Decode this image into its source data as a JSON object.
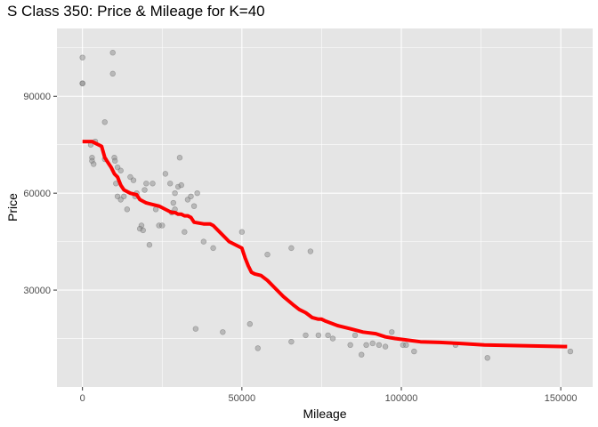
{
  "chart_data": {
    "type": "scatter",
    "title": "S Class 350: Price & Mileage for K=40",
    "xlabel": "Mileage",
    "ylabel": "Price",
    "xlim": [
      -8000,
      160000
    ],
    "ylim": [
      0,
      111000
    ],
    "x_ticks": [
      0,
      50000,
      100000,
      150000
    ],
    "x_tick_labels": [
      "0",
      "50000",
      "100000",
      "150000"
    ],
    "y_ticks": [
      30000,
      60000,
      90000
    ],
    "y_tick_labels": [
      "30000",
      "60000",
      "90000"
    ],
    "grid": true,
    "colors": {
      "panel_background": "#e5e5e5",
      "grid": "#ffffff",
      "points": "#8c8c8c",
      "fit_line": "#ff0000"
    },
    "series": [
      {
        "type": "scatter",
        "x": [
          0,
          0,
          0,
          9500,
          9500,
          7000,
          2600,
          3000,
          3000,
          3500,
          4000,
          7000,
          10000,
          10200,
          11000,
          12000,
          10500,
          13000,
          15000,
          16000,
          17000,
          18500,
          20000,
          22000,
          11000,
          12000,
          14000,
          16500,
          18000,
          19000,
          19500,
          21000,
          23000,
          24000,
          25000,
          26000,
          27500,
          28000,
          28500,
          29000,
          30000,
          31000,
          29000,
          30500,
          32000,
          33000,
          35000,
          34000,
          36000,
          38000,
          41000,
          50000,
          58000,
          65500,
          71500,
          35500,
          44000,
          52500,
          55000,
          65500,
          70000,
          74000,
          77000,
          78500,
          84000,
          85500,
          87500,
          89000,
          91000,
          93000,
          95000,
          97000,
          100500,
          101500,
          104000,
          117000,
          127000,
          153000
        ],
        "y": [
          102000,
          94000,
          94000,
          103500,
          97000,
          82000,
          75000,
          71000,
          70000,
          69000,
          76000,
          70500,
          71000,
          70000,
          68000,
          67000,
          63000,
          59000,
          65000,
          64000,
          60000,
          50000,
          63000,
          63000,
          59000,
          58000,
          55000,
          59000,
          49000,
          48500,
          61000,
          44000,
          55000,
          50000,
          50000,
          66000,
          63000,
          54000,
          57000,
          60000,
          62000,
          62500,
          55000,
          71000,
          48000,
          58000,
          56000,
          59000,
          60000,
          45000,
          43000,
          48000,
          41000,
          43000,
          42000,
          18000,
          17000,
          19500,
          12000,
          14000,
          16000,
          16000,
          16000,
          15000,
          13000,
          16000,
          10000,
          13000,
          13500,
          13000,
          12500,
          17000,
          13000,
          13000,
          11000,
          13000,
          9000,
          11000
        ]
      },
      {
        "type": "line",
        "x": [
          0,
          3000,
          4000,
          5000,
          6000,
          7000,
          8000,
          9000,
          10000,
          11000,
          12000,
          13000,
          15000,
          17000,
          18000,
          20000,
          22000,
          24000,
          25000,
          27000,
          28000,
          29000,
          30000,
          31000,
          32000,
          33000,
          34000,
          35000,
          38000,
          40000,
          41000,
          43000,
          46000,
          50000,
          51000,
          52000,
          53000,
          54000,
          56000,
          58000,
          60000,
          63000,
          66000,
          68000,
          70000,
          72000,
          74000,
          75000,
          76000,
          80000,
          84000,
          88000,
          92000,
          95000,
          98000,
          102000,
          106000,
          112000,
          118000,
          126000,
          152000
        ],
        "y": [
          76000,
          76000,
          75500,
          75000,
          74500,
          71000,
          69500,
          68000,
          66000,
          65000,
          62500,
          61000,
          60000,
          59500,
          58000,
          57000,
          56500,
          56000,
          55500,
          54500,
          54000,
          54000,
          53500,
          53500,
          53000,
          53000,
          52500,
          51000,
          50500,
          50500,
          50000,
          48000,
          45000,
          43000,
          40000,
          37500,
          35500,
          35000,
          34500,
          33000,
          31000,
          28000,
          25500,
          24000,
          23000,
          21500,
          21000,
          21000,
          20500,
          19000,
          18000,
          17000,
          16500,
          15500,
          15000,
          14500,
          14000,
          13800,
          13500,
          13000,
          12500
        ]
      }
    ]
  }
}
